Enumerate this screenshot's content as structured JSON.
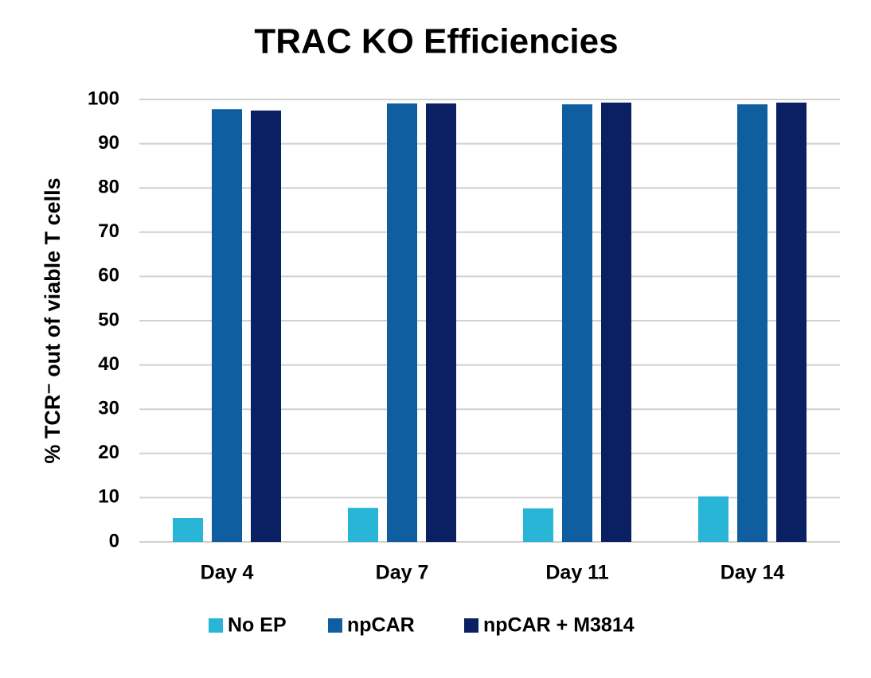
{
  "chart_data": {
    "type": "bar",
    "title": "TRAC KO Efficiencies",
    "y_label": "% TCR⁻ out of viable T cells",
    "categories": [
      "Day 4",
      "Day 7",
      "Day 11",
      "Day 14"
    ],
    "series": [
      {
        "name": "No EP",
        "color": "#29b5d5",
        "values": [
          5.4,
          7.7,
          7.6,
          10.3
        ]
      },
      {
        "name": "npCAR",
        "color": "#0f5fa0",
        "values": [
          97.8,
          99.1,
          98.9,
          98.9
        ]
      },
      {
        "name": "npCAR + M3814",
        "color": "#0b1f63",
        "values": [
          97.5,
          99.1,
          99.3,
          99.3
        ]
      }
    ],
    "ylim": [
      0,
      100
    ],
    "yticks": [
      0,
      10,
      20,
      30,
      40,
      50,
      60,
      70,
      80,
      90,
      100
    ],
    "grid": true,
    "legend": "bottom"
  }
}
